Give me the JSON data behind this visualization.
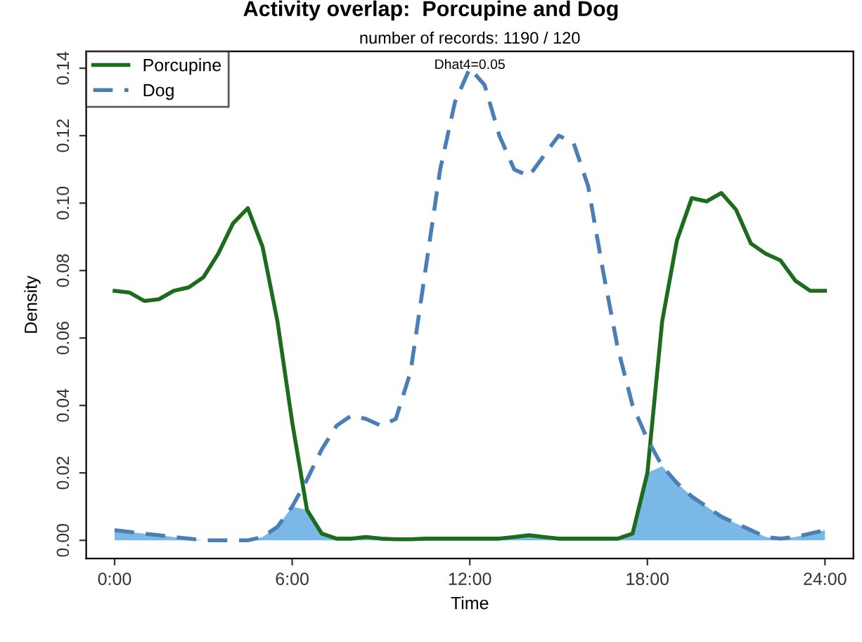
{
  "chart_data": {
    "type": "line",
    "title": "Activity overlap:  Porcupine and Dog",
    "subtitle": "number of records: 1190 / 120",
    "xlabel": "Time",
    "ylabel": "Density",
    "annotations": [
      "Dhat4=0.05"
    ],
    "x": [
      0,
      0.5,
      1,
      1.5,
      2,
      2.5,
      3,
      3.5,
      4,
      4.5,
      5,
      5.5,
      6,
      6.5,
      7,
      7.5,
      8,
      8.5,
      9,
      9.5,
      10,
      10.5,
      11,
      11.5,
      12,
      12.5,
      13,
      13.5,
      14,
      14.5,
      15,
      15.5,
      16,
      16.5,
      17,
      17.5,
      18,
      18.5,
      19,
      19.5,
      20,
      20.5,
      21,
      21.5,
      22,
      22.5,
      23,
      23.5,
      24
    ],
    "series": [
      {
        "type": "area",
        "color": "#7ab8e8",
        "values": [
          0.003,
          0.0025,
          0.002,
          0.0015,
          0.001,
          0.0005,
          0,
          0,
          0,
          0,
          0.001,
          0.004,
          0.01,
          0.009,
          0.002,
          0.0005,
          0.0005,
          0.001,
          0.0005,
          0.0003,
          0.0003,
          0.0005,
          0.0005,
          0.0005,
          0.0005,
          0.0005,
          0.0005,
          0.001,
          0.0015,
          0.001,
          0.0005,
          0.0005,
          0.0005,
          0.0005,
          0.0005,
          0.002,
          0.02,
          0.022,
          0.017,
          0.013,
          0.01,
          0.007,
          0.005,
          0.003,
          0.001,
          0.0005,
          0.001,
          0.002,
          0.003
        ]
      },
      {
        "name": "Porcupine",
        "line_style": "solid",
        "color": "#1d6b1d",
        "values": [
          0.074,
          0.0735,
          0.071,
          0.0715,
          0.074,
          0.075,
          0.078,
          0.085,
          0.094,
          0.0985,
          0.087,
          0.065,
          0.035,
          0.009,
          0.002,
          0.0005,
          0.0005,
          0.001,
          0.0005,
          0.0003,
          0.0003,
          0.0005,
          0.0005,
          0.0005,
          0.0005,
          0.0005,
          0.0005,
          0.001,
          0.0015,
          0.001,
          0.0005,
          0.0005,
          0.0005,
          0.0005,
          0.0005,
          0.002,
          0.02,
          0.065,
          0.089,
          0.1015,
          0.1005,
          0.103,
          0.098,
          0.088,
          0.085,
          0.083,
          0.077,
          0.074,
          0.074
        ]
      },
      {
        "name": "Dog",
        "line_style": "dashed",
        "color": "#4a7fb5",
        "values": [
          0.003,
          0.0025,
          0.002,
          0.0015,
          0.001,
          0.0005,
          0,
          0,
          0,
          0,
          0.001,
          0.004,
          0.01,
          0.018,
          0.027,
          0.034,
          0.037,
          0.036,
          0.034,
          0.036,
          0.05,
          0.08,
          0.11,
          0.13,
          0.14,
          0.135,
          0.12,
          0.11,
          0.108,
          0.114,
          0.12,
          0.118,
          0.105,
          0.08,
          0.057,
          0.04,
          0.03,
          0.022,
          0.017,
          0.013,
          0.01,
          0.007,
          0.005,
          0.003,
          0.001,
          0.0005,
          0.001,
          0.002,
          0.003
        ]
      }
    ],
    "xlim": [
      -0.96,
      24.96
    ],
    "ylim": [
      -0.0054,
      0.145
    ],
    "xticks": [
      {
        "value": 0,
        "label": "0:00"
      },
      {
        "value": 6,
        "label": "6:00"
      },
      {
        "value": 12,
        "label": "12:00"
      },
      {
        "value": 18,
        "label": "18:00"
      },
      {
        "value": 24,
        "label": "24:00"
      }
    ],
    "yticks": [
      {
        "value": 0,
        "label": "0.00"
      },
      {
        "value": 0.02,
        "label": "0.02"
      },
      {
        "value": 0.04,
        "label": "0.04"
      },
      {
        "value": 0.06,
        "label": "0.06"
      },
      {
        "value": 0.08,
        "label": "0.08"
      },
      {
        "value": 0.1,
        "label": "0.10"
      },
      {
        "value": 0.12,
        "label": "0.12"
      },
      {
        "value": 0.14,
        "label": "0.14"
      }
    ],
    "grid": false,
    "legend": "top left"
  }
}
